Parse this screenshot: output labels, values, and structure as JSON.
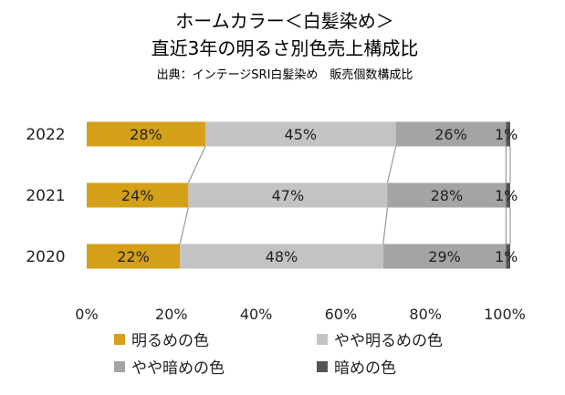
{
  "chart_data": {
    "type": "bar",
    "orientation": "horizontal",
    "stacked": "percent",
    "title": "ホームカラー＜白髪染め＞",
    "subtitle": "直近3年の明るさ別色売上構成比",
    "source": "出典：インテージSRI白髪染め　販売個数構成比",
    "categories": [
      "2022",
      "2021",
      "2020"
    ],
    "series": [
      {
        "name": "明るめの色",
        "values": [
          28,
          24,
          22
        ],
        "labels": [
          "28%",
          "24%",
          "22%"
        ],
        "color": "#d4a017"
      },
      {
        "name": "やや明るめの色",
        "values": [
          45,
          47,
          48
        ],
        "labels": [
          "45%",
          "47%",
          "48%"
        ],
        "color": "#c3c3c3"
      },
      {
        "name": "やや暗めの色",
        "values": [
          26,
          28,
          29
        ],
        "labels": [
          "26%",
          "28%",
          "29%"
        ],
        "color": "#a4a4a4"
      },
      {
        "name": "暗めの色",
        "values": [
          1,
          1,
          1
        ],
        "labels": [
          "1%",
          "1%",
          "1%"
        ],
        "color": "#555555"
      }
    ],
    "xticks": [
      "0%",
      "20%",
      "40%",
      "60%",
      "80%",
      "100%"
    ],
    "xlim": [
      0,
      100
    ],
    "series_lines": true,
    "grid": false,
    "legend": "bottom"
  }
}
